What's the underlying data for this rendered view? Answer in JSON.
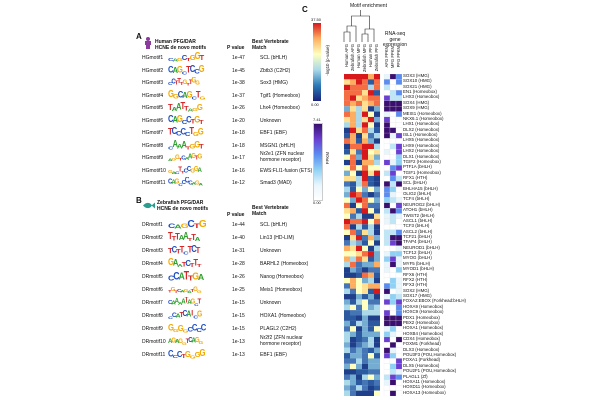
{
  "panel_a": {
    "letter": "A",
    "title_line1": "Human PFG/DAR",
    "title_line2": "HCNE de novo motifs",
    "pvalue_header": "P value",
    "match_header_1": "Best Vertebrate",
    "match_header_2": "Match",
    "rows": [
      {
        "id": "HGmotif1",
        "seq": "CAGCTGGT",
        "p": "1e-47",
        "match": "SCL (bHLH)"
      },
      {
        "id": "HGmotif2",
        "seq": "CAGCTCCG",
        "p": "1e-45",
        "match": "Zbtb3 (C2H2)"
      },
      {
        "id": "HGmotif3",
        "seq": "CCTTTGTTGG",
        "p": "1e-38",
        "match": "Sox3 (HMG)"
      },
      {
        "id": "HGmotif4",
        "seq": "GGCAGCTG",
        "p": "1e-37",
        "match": "Tgif1 (Homeobox)"
      },
      {
        "id": "HGmotif5",
        "seq": "TAATTAGG",
        "p": "1e-26",
        "match": "Lhx4 (Homeobox)"
      },
      {
        "id": "HGmotif6",
        "seq": "CAGCCTGT",
        "p": "1e-20",
        "match": "Unknown"
      },
      {
        "id": "HGmotif7",
        "seq": "TCCCCTGG",
        "p": "1e-18",
        "match": "EBF1 (EBF)"
      },
      {
        "id": "HGmotif8",
        "seq": "CAAATGGT",
        "p": "1e-18",
        "match": "MSGN1 (bHLH)"
      },
      {
        "id": "HGmotif9",
        "seq": "AGGTCAAGTG",
        "p": "1e-17",
        "match": "Nr2e1 (ZFN nuclear|hormone receptor)"
      },
      {
        "id": "HGmotif10",
        "seq": "GACTTCCGGA",
        "p": "1e-16",
        "match": "EWS:FLI1-fusion (ETS)"
      },
      {
        "id": "HGmotif11",
        "seq": "CAGCCCCAGA",
        "p": "1e-12",
        "match": "Smad3 (MAD)"
      }
    ]
  },
  "panel_b": {
    "letter": "B",
    "title_line1": "Zebrafish PFG/DAR",
    "title_line2": "HCNE de novo motifs",
    "pvalue_header": "P value",
    "match_header_1": "Best Vertebrate",
    "match_header_2": "Match",
    "rows": [
      {
        "id": "DRmotif1",
        "seq": "CAGCTG",
        "p": "1e-44",
        "match": "SCL (bHLH)"
      },
      {
        "id": "DRmotif2",
        "seq": "TTTAATTA",
        "p": "1e-40",
        "match": "Lin13 (HD-LIM)"
      },
      {
        "id": "DRmotif3",
        "seq": "TCTTCTCT",
        "p": "1e-31",
        "match": "Unknown"
      },
      {
        "id": "DRmotif4",
        "seq": "GAATCTTT",
        "p": "1e-28",
        "match": "BARHL2 (Homeobox)"
      },
      {
        "id": "DRmotif5",
        "seq": "CCATTGA",
        "p": "1e-26",
        "match": "Nanog (Homeobox)"
      },
      {
        "id": "DRmotif6",
        "seq": "TGTCAGATGG",
        "p": "1e-25",
        "match": "Meis1 (Homeobox)"
      },
      {
        "id": "DRmotif7",
        "seq": "CAAAATAGCT",
        "p": "1e-15",
        "match": "Unknown"
      },
      {
        "id": "DRmotif8",
        "seq": "CCATCATCG",
        "p": "1e-15",
        "match": "HOXA1 (Homeobox)"
      },
      {
        "id": "DRmotif9",
        "seq": "GGGGCCCC",
        "p": "1e-15",
        "match": "PLAGL2 (C2H2)"
      },
      {
        "id": "DRmotif10",
        "seq": "AGAGGTCAGG",
        "p": "1e-13",
        "match": "Nr2f2 (ZFN nuclear|hormone receptor)"
      },
      {
        "id": "DRmotif11",
        "seq": "CCCTGGGG",
        "p": "1e-13",
        "match": "EBF1 (EBF)"
      }
    ]
  },
  "panel_c": {
    "letter": "C",
    "motif_enrichment_label": "Motif enrichment",
    "rnaseq_label_1": "RNA-seq",
    "rnaseq_label_2": "gene",
    "rnaseq_label_3": "expression",
    "pvalue_scale_max": "37.50",
    "pvalue_scale_min": "0.00",
    "pvalue_scale_label": "-log10 (p-value)",
    "fpkm_scale_max": "7.41",
    "fpkm_scale_min": "0.00",
    "fpkm_scale_label": "FPKM",
    "column_labels": [
      "Human AFG",
      "Zebrafish AFG",
      "Human MFG",
      "Zebrafish MFG",
      "Human PFG",
      "Zebrafish PFG",
      "AFG FPKM",
      "MFG FPKM",
      "PFG FPKM"
    ],
    "genes": [
      "SOX3 (HMG)",
      "SOX10 (HMG)",
      "SOX21 (HMG)",
      "EN1 (Homeobox)",
      "LHX3 (Homeobox)",
      "SOX4 (HMG)",
      "SOX9 (HMG)",
      "MEIS1 (Homeobox)",
      "NKX6.1 (Homeobox)",
      "LHX1 (Homeobox)",
      "DLX2 (Homeobox)",
      "ISL1 (Homeobox)",
      "LHX5 (Homeobox)",
      "LHX9 (Homeobox)",
      "LHX2 (Homeobox)",
      "DLX1 (Homeobox)",
      "TGIF2 (Homeobox)",
      "PTF1A (bHLH)",
      "TGIF1 (Homeobox)",
      "RFX1 (HTH)",
      "SCL (bHLH)",
      "BHLHA15 (bHLH)",
      "OLIG2 (bHLH)",
      "TCF4 (bHLH)",
      "NEUROG2 (bHLH)",
      "ATOH1 (bHLH)",
      "TWIST2 (bHLH)",
      "ASCL1 (bHLH)",
      "TCF3 (bHLH)",
      "ASCL2 (bHLH)",
      "TCF21 (bHLH)",
      "TFAP4 (bHLH)",
      "NEUROD1 (bHLH)",
      "TCF12 (bHLH)",
      "MYOG (bHLH)",
      "MYF5 (bHLH)",
      "MYOD1 (bHLH)",
      "RFX6 (HTH)",
      "RFX2 (HTH)",
      "RFX3 (HTH)",
      "SOX2 (HMG)",
      "SOX17 (HMG)",
      "FOXA2:EBOX (Forkhead:bHLH)",
      "HOXA9 (Homeobox)",
      "HOXC9 (Homeobox)",
      "PDX1 (Homeobox)",
      "PBX2 (Homeobox)",
      "HOXA1 (Homeobox)",
      "HOXB4 (Homeobox)",
      "CDX4 (Homeobox)",
      "FOXM1 (Forkhead)",
      "DLX3 (Homeobox)",
      "POU3F3 (POU,Homeobox)",
      "FOXA1 (Forkhead)",
      "DLX5 (Homeobox)",
      "POU2F1 (POU,Homeobox)",
      "PLAGL1 (Zf)",
      "HOXA11 (Homeobox)",
      "HOXD11 (Homeobox)",
      "HOXA13 (Homeobox)"
    ]
  },
  "colors": {
    "A": "#2ca02c",
    "C": "#1f4fc4",
    "G": "#f2a900",
    "T": "#d62728",
    "human_icon": "#8b3a9e",
    "zebrafish_icon": "#2a9d8f"
  },
  "icons": {
    "human": "person-icon",
    "zebrafish": "fish-icon"
  }
}
